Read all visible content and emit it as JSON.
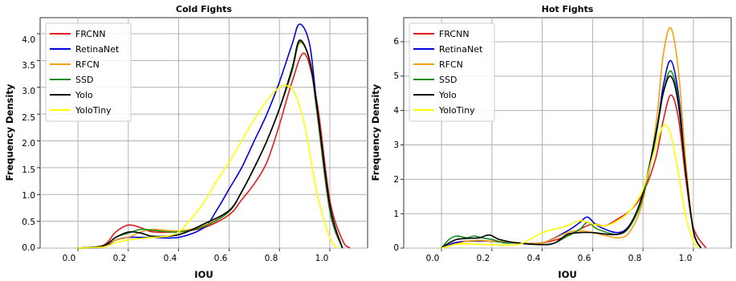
{
  "chart_data": [
    {
      "type": "line",
      "title": "Cold Fights",
      "xlabel": "IOU",
      "ylabel": "Frequency Density",
      "xlim": [
        -0.15,
        1.15
      ],
      "ylim": [
        0,
        4.3
      ],
      "xticks": [
        "0.0",
        "0.2",
        "0.4",
        "0.6",
        "0.8",
        "1.0"
      ],
      "yticks": [
        "0.0",
        "0.5",
        "1.0",
        "1.5",
        "2.0",
        "2.5",
        "3.0",
        "3.5",
        "4.0"
      ],
      "grid": true,
      "legend_position": "top-left",
      "series": [
        {
          "name": "FRCNN",
          "color": "#e41a1c",
          "points": [
            [
              0.0,
              0
            ],
            [
              0.1,
              0.05
            ],
            [
              0.15,
              0.3
            ],
            [
              0.2,
              0.43
            ],
            [
              0.25,
              0.38
            ],
            [
              0.3,
              0.3
            ],
            [
              0.4,
              0.31
            ],
            [
              0.5,
              0.38
            ],
            [
              0.6,
              0.62
            ],
            [
              0.65,
              0.9
            ],
            [
              0.7,
              1.2
            ],
            [
              0.75,
              1.6
            ],
            [
              0.8,
              2.3
            ],
            [
              0.85,
              3.1
            ],
            [
              0.9,
              3.63
            ],
            [
              0.95,
              2.7
            ],
            [
              1.0,
              0.9
            ],
            [
              1.05,
              0.15
            ],
            [
              1.08,
              0
            ]
          ]
        },
        {
          "name": "RetinaNet",
          "color": "#0000dd",
          "points": [
            [
              0.0,
              0
            ],
            [
              0.1,
              0.02
            ],
            [
              0.15,
              0.15
            ],
            [
              0.2,
              0.2
            ],
            [
              0.25,
              0.2
            ],
            [
              0.3,
              0.2
            ],
            [
              0.4,
              0.2
            ],
            [
              0.5,
              0.38
            ],
            [
              0.55,
              0.7
            ],
            [
              0.6,
              1.1
            ],
            [
              0.65,
              1.5
            ],
            [
              0.7,
              2.0
            ],
            [
              0.75,
              2.5
            ],
            [
              0.8,
              3.1
            ],
            [
              0.85,
              3.8
            ],
            [
              0.88,
              4.18
            ],
            [
              0.92,
              3.8
            ],
            [
              0.95,
              2.6
            ],
            [
              1.0,
              0.7
            ],
            [
              1.05,
              0
            ]
          ]
        },
        {
          "name": "RFCN",
          "color": "#f5a00c",
          "points": [
            [
              0.0,
              0
            ],
            [
              0.1,
              0.04
            ],
            [
              0.15,
              0.15
            ],
            [
              0.2,
              0.2
            ],
            [
              0.25,
              0.3
            ],
            [
              0.3,
              0.35
            ],
            [
              0.4,
              0.32
            ],
            [
              0.5,
              0.42
            ],
            [
              0.6,
              0.68
            ],
            [
              0.65,
              1.05
            ],
            [
              0.7,
              1.5
            ],
            [
              0.75,
              2.0
            ],
            [
              0.8,
              2.6
            ],
            [
              0.85,
              3.3
            ],
            [
              0.88,
              3.83
            ],
            [
              0.92,
              3.5
            ],
            [
              0.95,
              2.5
            ],
            [
              1.0,
              0.7
            ],
            [
              1.05,
              0
            ]
          ]
        },
        {
          "name": "SSD",
          "color": "#1a8a1a",
          "points": [
            [
              0.0,
              0
            ],
            [
              0.1,
              0.04
            ],
            [
              0.15,
              0.2
            ],
            [
              0.2,
              0.28
            ],
            [
              0.25,
              0.35
            ],
            [
              0.3,
              0.33
            ],
            [
              0.4,
              0.3
            ],
            [
              0.5,
              0.4
            ],
            [
              0.6,
              0.68
            ],
            [
              0.65,
              1.05
            ],
            [
              0.7,
              1.5
            ],
            [
              0.75,
              2.0
            ],
            [
              0.8,
              2.6
            ],
            [
              0.85,
              3.3
            ],
            [
              0.88,
              3.85
            ],
            [
              0.92,
              3.5
            ],
            [
              0.95,
              2.5
            ],
            [
              1.0,
              0.7
            ],
            [
              1.05,
              0
            ]
          ]
        },
        {
          "name": "Yolo",
          "color": "#000000",
          "points": [
            [
              0.0,
              0
            ],
            [
              0.1,
              0.04
            ],
            [
              0.15,
              0.2
            ],
            [
              0.2,
              0.3
            ],
            [
              0.25,
              0.28
            ],
            [
              0.3,
              0.22
            ],
            [
              0.4,
              0.25
            ],
            [
              0.5,
              0.45
            ],
            [
              0.6,
              0.7
            ],
            [
              0.65,
              1.05
            ],
            [
              0.7,
              1.5
            ],
            [
              0.75,
              2.0
            ],
            [
              0.8,
              2.6
            ],
            [
              0.85,
              3.35
            ],
            [
              0.88,
              3.88
            ],
            [
              0.92,
              3.5
            ],
            [
              0.95,
              2.6
            ],
            [
              1.0,
              0.8
            ],
            [
              1.05,
              0
            ]
          ]
        },
        {
          "name": "YoloTiny",
          "color": "#ffff00",
          "points": [
            [
              0.0,
              0
            ],
            [
              0.1,
              0.02
            ],
            [
              0.15,
              0.1
            ],
            [
              0.2,
              0.15
            ],
            [
              0.25,
              0.18
            ],
            [
              0.3,
              0.2
            ],
            [
              0.35,
              0.22
            ],
            [
              0.4,
              0.3
            ],
            [
              0.45,
              0.55
            ],
            [
              0.5,
              0.85
            ],
            [
              0.55,
              1.25
            ],
            [
              0.6,
              1.6
            ],
            [
              0.65,
              2.0
            ],
            [
              0.7,
              2.4
            ],
            [
              0.75,
              2.75
            ],
            [
              0.8,
              3.0
            ],
            [
              0.83,
              3.03
            ],
            [
              0.86,
              2.9
            ],
            [
              0.9,
              2.3
            ],
            [
              0.95,
              1.0
            ],
            [
              1.0,
              0.2
            ],
            [
              1.03,
              0
            ]
          ]
        }
      ]
    },
    {
      "type": "line",
      "title": "Hot Fights",
      "xlabel": "IOU",
      "ylabel": "Frequency Density",
      "xlim": [
        -0.15,
        1.15
      ],
      "ylim": [
        0,
        6.7
      ],
      "xticks": [
        "0.0",
        "0.2",
        "0.4",
        "0.6",
        "0.8",
        "1.0"
      ],
      "yticks": [
        "0",
        "1",
        "2",
        "3",
        "4",
        "5",
        "6"
      ],
      "grid": true,
      "legend_position": "top-left",
      "series": [
        {
          "name": "FRCNN",
          "color": "#e41a1c",
          "points": [
            [
              0.0,
              0
            ],
            [
              0.05,
              0.15
            ],
            [
              0.1,
              0.2
            ],
            [
              0.15,
              0.22
            ],
            [
              0.2,
              0.2
            ],
            [
              0.3,
              0.15
            ],
            [
              0.4,
              0.15
            ],
            [
              0.5,
              0.35
            ],
            [
              0.55,
              0.55
            ],
            [
              0.6,
              0.7
            ],
            [
              0.65,
              0.65
            ],
            [
              0.7,
              0.85
            ],
            [
              0.75,
              1.1
            ],
            [
              0.8,
              1.6
            ],
            [
              0.85,
              2.6
            ],
            [
              0.88,
              3.7
            ],
            [
              0.91,
              4.45
            ],
            [
              0.94,
              3.8
            ],
            [
              0.97,
              2.0
            ],
            [
              1.0,
              0.6
            ],
            [
              1.05,
              0
            ]
          ]
        },
        {
          "name": "RetinaNet",
          "color": "#0000dd",
          "points": [
            [
              0.0,
              0
            ],
            [
              0.05,
              0.15
            ],
            [
              0.1,
              0.2
            ],
            [
              0.15,
              0.2
            ],
            [
              0.2,
              0.2
            ],
            [
              0.3,
              0.15
            ],
            [
              0.4,
              0.15
            ],
            [
              0.5,
              0.5
            ],
            [
              0.55,
              0.75
            ],
            [
              0.58,
              0.9
            ],
            [
              0.62,
              0.65
            ],
            [
              0.7,
              0.45
            ],
            [
              0.75,
              0.7
            ],
            [
              0.8,
              1.5
            ],
            [
              0.85,
              3.2
            ],
            [
              0.88,
              4.7
            ],
            [
              0.91,
              5.45
            ],
            [
              0.94,
              4.5
            ],
            [
              0.97,
              2.3
            ],
            [
              1.0,
              0.5
            ],
            [
              1.03,
              0
            ]
          ]
        },
        {
          "name": "RFCN",
          "color": "#f5a00c",
          "points": [
            [
              0.0,
              0
            ],
            [
              0.05,
              0.1
            ],
            [
              0.1,
              0.2
            ],
            [
              0.15,
              0.22
            ],
            [
              0.2,
              0.2
            ],
            [
              0.25,
              0.2
            ],
            [
              0.3,
              0.15
            ],
            [
              0.4,
              0.15
            ],
            [
              0.5,
              0.45
            ],
            [
              0.55,
              0.5
            ],
            [
              0.6,
              0.45
            ],
            [
              0.7,
              0.3
            ],
            [
              0.75,
              0.5
            ],
            [
              0.8,
              1.4
            ],
            [
              0.85,
              3.5
            ],
            [
              0.88,
              5.6
            ],
            [
              0.91,
              6.4
            ],
            [
              0.94,
              5.2
            ],
            [
              0.97,
              2.5
            ],
            [
              1.0,
              0.5
            ],
            [
              1.03,
              0
            ]
          ]
        },
        {
          "name": "SSD",
          "color": "#1a8a1a",
          "points": [
            [
              0.0,
              0
            ],
            [
              0.03,
              0.25
            ],
            [
              0.06,
              0.35
            ],
            [
              0.1,
              0.3
            ],
            [
              0.13,
              0.35
            ],
            [
              0.16,
              0.3
            ],
            [
              0.2,
              0.25
            ],
            [
              0.25,
              0.15
            ],
            [
              0.3,
              0.15
            ],
            [
              0.4,
              0.1
            ],
            [
              0.45,
              0.15
            ],
            [
              0.5,
              0.35
            ],
            [
              0.55,
              0.55
            ],
            [
              0.58,
              0.75
            ],
            [
              0.62,
              0.55
            ],
            [
              0.7,
              0.4
            ],
            [
              0.75,
              0.65
            ],
            [
              0.8,
              1.5
            ],
            [
              0.85,
              3.2
            ],
            [
              0.88,
              4.5
            ],
            [
              0.91,
              5.15
            ],
            [
              0.94,
              4.3
            ],
            [
              0.97,
              2.2
            ],
            [
              1.0,
              0.5
            ],
            [
              1.03,
              0
            ]
          ]
        },
        {
          "name": "Yolo",
          "color": "#000000",
          "points": [
            [
              0.0,
              0
            ],
            [
              0.03,
              0.15
            ],
            [
              0.06,
              0.25
            ],
            [
              0.1,
              0.28
            ],
            [
              0.15,
              0.3
            ],
            [
              0.19,
              0.38
            ],
            [
              0.23,
              0.25
            ],
            [
              0.3,
              0.15
            ],
            [
              0.4,
              0.1
            ],
            [
              0.45,
              0.15
            ],
            [
              0.5,
              0.4
            ],
            [
              0.55,
              0.45
            ],
            [
              0.6,
              0.45
            ],
            [
              0.7,
              0.4
            ],
            [
              0.75,
              0.7
            ],
            [
              0.8,
              1.6
            ],
            [
              0.85,
              3.3
            ],
            [
              0.88,
              4.5
            ],
            [
              0.91,
              5.0
            ],
            [
              0.94,
              4.2
            ],
            [
              0.97,
              2.2
            ],
            [
              1.0,
              0.5
            ],
            [
              1.03,
              0
            ]
          ]
        },
        {
          "name": "YoloTiny",
          "color": "#ffff00",
          "points": [
            [
              0.0,
              0
            ],
            [
              0.05,
              0.1
            ],
            [
              0.1,
              0.12
            ],
            [
              0.2,
              0.1
            ],
            [
              0.3,
              0.1
            ],
            [
              0.35,
              0.25
            ],
            [
              0.4,
              0.45
            ],
            [
              0.45,
              0.55
            ],
            [
              0.5,
              0.65
            ],
            [
              0.55,
              0.8
            ],
            [
              0.6,
              0.7
            ],
            [
              0.65,
              0.65
            ],
            [
              0.7,
              0.8
            ],
            [
              0.75,
              1.1
            ],
            [
              0.8,
              1.7
            ],
            [
              0.84,
              2.7
            ],
            [
              0.88,
              3.55
            ],
            [
              0.91,
              3.3
            ],
            [
              0.94,
              2.2
            ],
            [
              0.97,
              0.9
            ],
            [
              1.0,
              0.2
            ],
            [
              1.02,
              0
            ]
          ]
        }
      ]
    }
  ]
}
